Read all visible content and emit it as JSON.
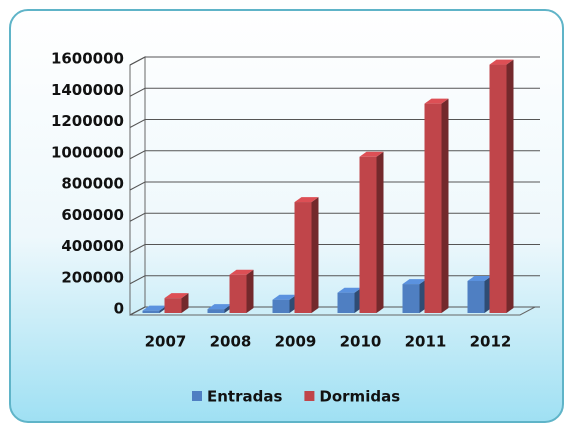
{
  "chart_data": {
    "type": "bar3d",
    "categories": [
      "2007",
      "2008",
      "2009",
      "2010",
      "2011",
      "2012"
    ],
    "series": [
      {
        "name": "Entradas",
        "color": "#4f7fc2",
        "values": [
          15000,
          25000,
          85000,
          130000,
          185000,
          205000
        ]
      },
      {
        "name": "Dormidas",
        "color": "#c0454a",
        "values": [
          95000,
          245000,
          710000,
          1000000,
          1340000,
          1590000
        ]
      }
    ],
    "ylim": [
      0,
      1600000
    ],
    "yticks": [
      0,
      200000,
      400000,
      600000,
      800000,
      1000000,
      1200000,
      1400000,
      1600000
    ],
    "grid": true,
    "legend": "bottom"
  }
}
